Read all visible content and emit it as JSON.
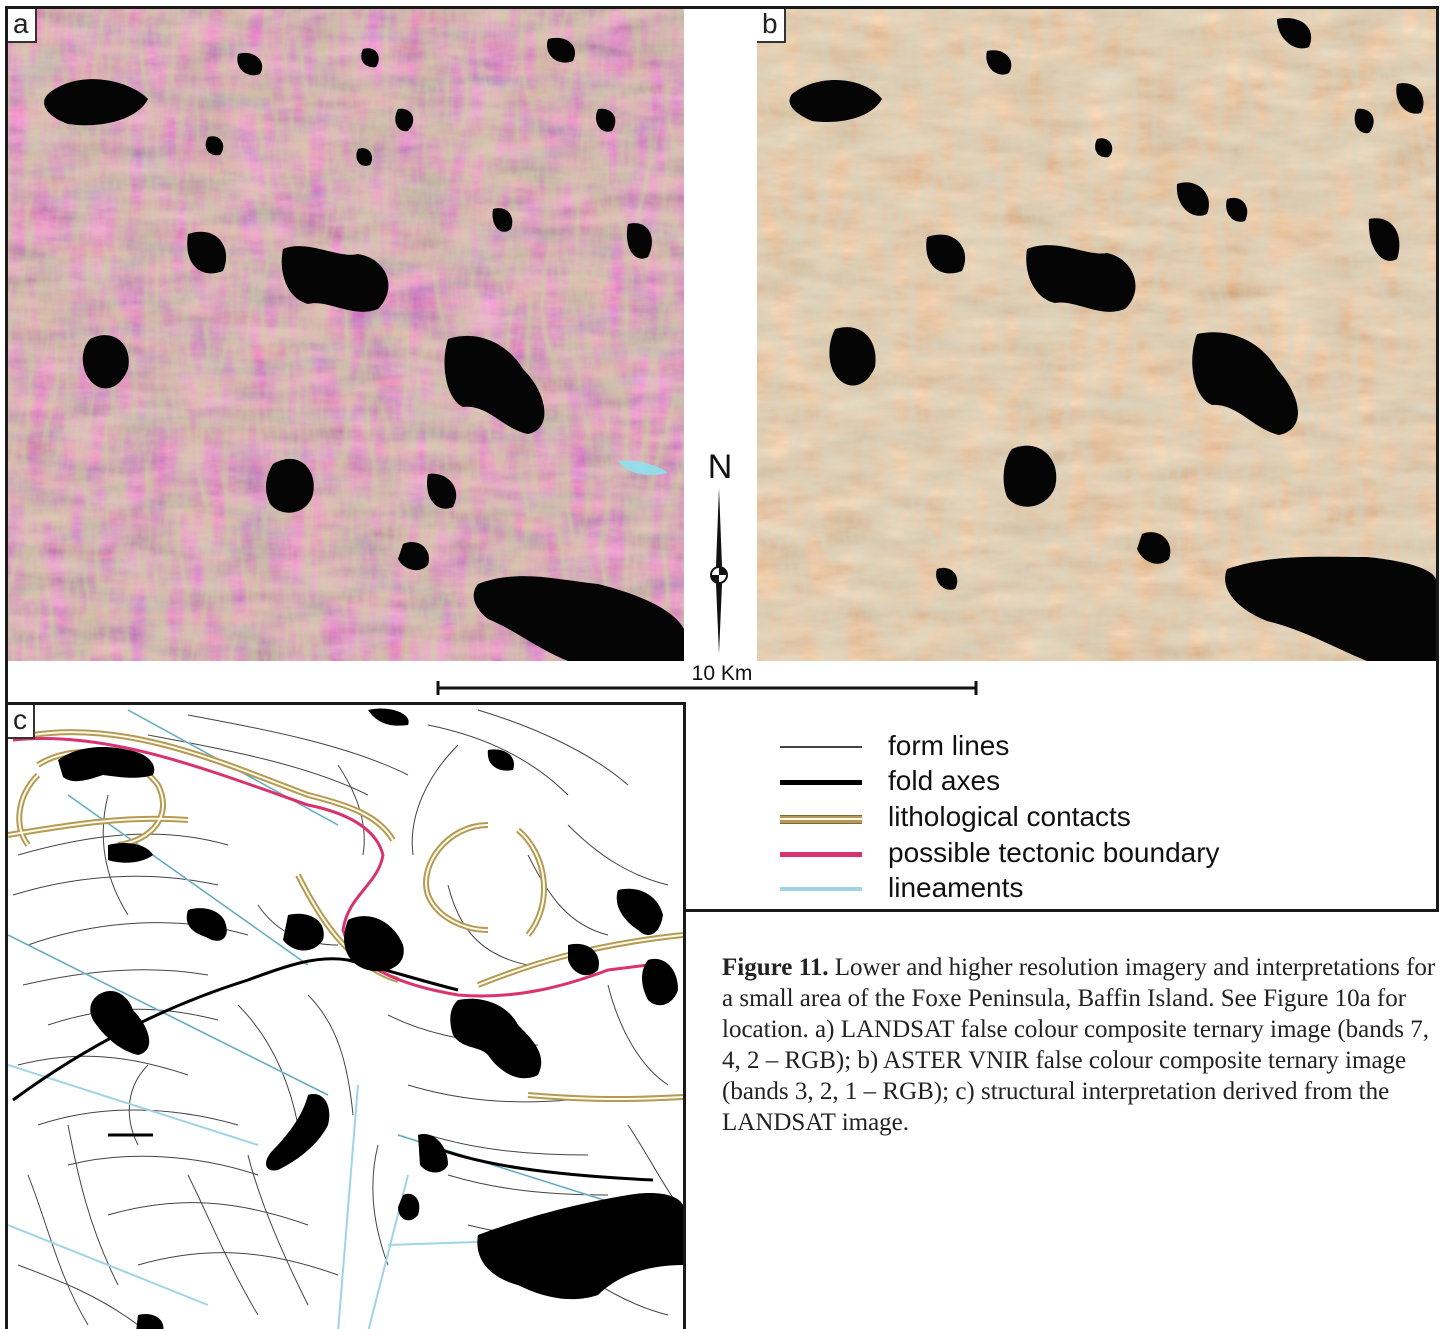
{
  "panels": {
    "a": {
      "label": "a"
    },
    "b": {
      "label": "b"
    },
    "c": {
      "label": "c"
    }
  },
  "north_arrow": {
    "label": "N"
  },
  "scale_bar": {
    "label": "10 Km"
  },
  "legend": [
    {
      "label": "form lines",
      "color": "#444444"
    },
    {
      "label": "fold axes",
      "color": "#000000"
    },
    {
      "label": "lithological contacts",
      "color": "#b49a55"
    },
    {
      "label": "possible tectonic boundary",
      "color": "#d9326e"
    },
    {
      "label": "lineaments",
      "color": "#9fd4e6"
    }
  ],
  "caption": {
    "lead": "Figure 11.",
    "body": "Lower and higher resolution imagery and interpretations for a small area of the Foxe Peninsula, Baffin Island. See Figure 10a for location. a) LANDSAT false colour composite ternary image (bands 7, 4, 2 – RGB); b) ASTER VNIR false colour composite ternary image (bands 3, 2, 1 – RGB); c) structural interpretation derived from the LANDSAT image."
  },
  "colors": {
    "landsat_base": "#c0467e",
    "landsat_highlight": "#e8a6c8",
    "landsat_vegetation": "#8fbf4a",
    "aster_base": "#d9885a",
    "aster_highlight": "#efd8b8",
    "aster_green": "#9aa78c",
    "water": "#050505"
  }
}
